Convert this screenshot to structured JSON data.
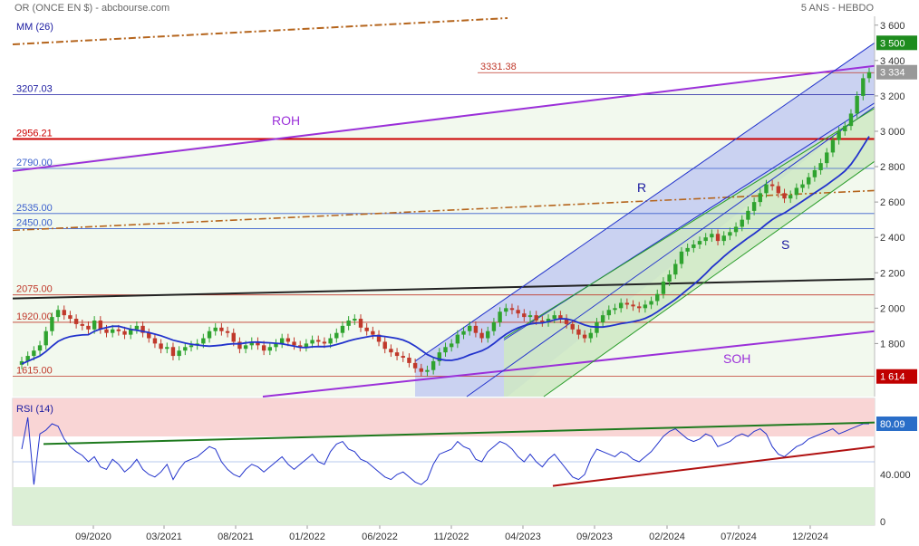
{
  "header": {
    "title": "OR (ONCE EN $) - abcbourse.com",
    "period": "5 ANS - HEBDO"
  },
  "chart_data": {
    "type": "candlestick",
    "ma_label": "MM (26)",
    "ylim": [
      1500,
      3650
    ],
    "y_ticks": [
      "1 800",
      "2 000",
      "2 200",
      "2 400",
      "2 600",
      "2 800",
      "3 000",
      "3 200",
      "3 400",
      "3 600"
    ],
    "x_ticks": [
      "09/2020",
      "03/2021",
      "08/2021",
      "01/2022",
      "06/2022",
      "11/2022",
      "04/2023",
      "09/2023",
      "02/2024",
      "07/2024",
      "12/2024"
    ],
    "levels": [
      {
        "label": "3331.38",
        "value": 3331.38,
        "color": "#c0392b"
      },
      {
        "label": "3207.03",
        "value": 3207.03,
        "color": "#1a1aa0"
      },
      {
        "label": "2956.21",
        "value": 2956.21,
        "color": "#cc0000"
      },
      {
        "label": "2790.00",
        "value": 2790.0,
        "color": "#3a5fcd"
      },
      {
        "label": "2535.00",
        "value": 2535.0,
        "color": "#3a5fcd"
      },
      {
        "label": "2450.00",
        "value": 2450.0,
        "color": "#3a5fcd"
      },
      {
        "label": "2075.00",
        "value": 2075.0,
        "color": "#c0392b"
      },
      {
        "label": "1920.00",
        "value": 1920.0,
        "color": "#c0392b"
      },
      {
        "label": "1615.00",
        "value": 1615.0,
        "color": "#c0392b"
      }
    ],
    "right_badges": [
      {
        "label": "3 500",
        "value": 3500,
        "color": "#1e8c1e"
      },
      {
        "label": "3 334",
        "value": 3334,
        "color": "#999999"
      },
      {
        "label": "1 614",
        "value": 1614,
        "color": "#c00000"
      }
    ],
    "annotations": [
      "ROH",
      "R",
      "S",
      "SOH"
    ],
    "close_path": [
      [
        0,
        1700
      ],
      [
        1,
        1730
      ],
      [
        2,
        1760
      ],
      [
        3,
        1790
      ],
      [
        4,
        1870
      ],
      [
        5,
        1950
      ],
      [
        6,
        1990
      ],
      [
        7,
        1960
      ],
      [
        8,
        1940
      ],
      [
        9,
        1910
      ],
      [
        10,
        1900
      ],
      [
        11,
        1880
      ],
      [
        12,
        1930
      ],
      [
        13,
        1880
      ],
      [
        14,
        1860
      ],
      [
        15,
        1880
      ],
      [
        16,
        1870
      ],
      [
        17,
        1850
      ],
      [
        18,
        1880
      ],
      [
        19,
        1900
      ],
      [
        20,
        1860
      ],
      [
        21,
        1830
      ],
      [
        22,
        1800
      ],
      [
        23,
        1770
      ],
      [
        24,
        1780
      ],
      [
        25,
        1730
      ],
      [
        26,
        1760
      ],
      [
        27,
        1780
      ],
      [
        28,
        1790
      ],
      [
        29,
        1800
      ],
      [
        30,
        1830
      ],
      [
        31,
        1870
      ],
      [
        32,
        1890
      ],
      [
        33,
        1870
      ],
      [
        34,
        1860
      ],
      [
        35,
        1810
      ],
      [
        36,
        1770
      ],
      [
        37,
        1790
      ],
      [
        38,
        1810
      ],
      [
        39,
        1790
      ],
      [
        40,
        1760
      ],
      [
        41,
        1780
      ],
      [
        42,
        1800
      ],
      [
        43,
        1830
      ],
      [
        44,
        1810
      ],
      [
        45,
        1790
      ],
      [
        46,
        1780
      ],
      [
        47,
        1800
      ],
      [
        48,
        1820
      ],
      [
        49,
        1810
      ],
      [
        50,
        1800
      ],
      [
        51,
        1830
      ],
      [
        52,
        1860
      ],
      [
        53,
        1900
      ],
      [
        54,
        1930
      ],
      [
        55,
        1940
      ],
      [
        56,
        1890
      ],
      [
        57,
        1870
      ],
      [
        58,
        1850
      ],
      [
        59,
        1810
      ],
      [
        60,
        1770
      ],
      [
        61,
        1750
      ],
      [
        62,
        1730
      ],
      [
        63,
        1720
      ],
      [
        64,
        1690
      ],
      [
        65,
        1660
      ],
      [
        66,
        1640
      ],
      [
        67,
        1650
      ],
      [
        68,
        1700
      ],
      [
        69,
        1750
      ],
      [
        70,
        1780
      ],
      [
        71,
        1800
      ],
      [
        72,
        1850
      ],
      [
        73,
        1870
      ],
      [
        74,
        1900
      ],
      [
        75,
        1860
      ],
      [
        76,
        1830
      ],
      [
        77,
        1870
      ],
      [
        78,
        1920
      ],
      [
        79,
        1980
      ],
      [
        80,
        2000
      ],
      [
        81,
        1990
      ],
      [
        82,
        1970
      ],
      [
        83,
        1950
      ],
      [
        84,
        1960
      ],
      [
        85,
        1930
      ],
      [
        86,
        1920
      ],
      [
        87,
        1940
      ],
      [
        88,
        1960
      ],
      [
        89,
        1940
      ],
      [
        90,
        1910
      ],
      [
        91,
        1880
      ],
      [
        92,
        1850
      ],
      [
        93,
        1830
      ],
      [
        94,
        1860
      ],
      [
        95,
        1920
      ],
      [
        96,
        1960
      ],
      [
        97,
        1990
      ],
      [
        98,
        2000
      ],
      [
        99,
        2030
      ],
      [
        100,
        2020
      ],
      [
        101,
        2010
      ],
      [
        102,
        2000
      ],
      [
        103,
        2020
      ],
      [
        104,
        2040
      ],
      [
        105,
        2080
      ],
      [
        106,
        2150
      ],
      [
        107,
        2190
      ],
      [
        108,
        2250
      ],
      [
        109,
        2320
      ],
      [
        110,
        2340
      ],
      [
        111,
        2360
      ],
      [
        112,
        2380
      ],
      [
        113,
        2400
      ],
      [
        114,
        2420
      ],
      [
        115,
        2380
      ],
      [
        116,
        2410
      ],
      [
        117,
        2430
      ],
      [
        118,
        2460
      ],
      [
        119,
        2500
      ],
      [
        120,
        2550
      ],
      [
        121,
        2600
      ],
      [
        122,
        2650
      ],
      [
        123,
        2700
      ],
      [
        124,
        2690
      ],
      [
        125,
        2650
      ],
      [
        126,
        2620
      ],
      [
        127,
        2640
      ],
      [
        128,
        2680
      ],
      [
        129,
        2700
      ],
      [
        130,
        2740
      ],
      [
        131,
        2780
      ],
      [
        132,
        2820
      ],
      [
        133,
        2880
      ],
      [
        134,
        2950
      ],
      [
        135,
        3000
      ],
      [
        136,
        3030
      ],
      [
        137,
        3100
      ],
      [
        138,
        3200
      ],
      [
        139,
        3300
      ],
      [
        140,
        3334
      ]
    ],
    "rsi": {
      "label": "RSI (14)",
      "value_badge": "80.09",
      "ticks": [
        "40.000",
        "0"
      ],
      "overbought": 70,
      "oversold": 30,
      "series": [
        [
          0,
          60
        ],
        [
          1,
          85
        ],
        [
          2,
          32
        ],
        [
          3,
          72
        ],
        [
          4,
          75
        ],
        [
          5,
          80
        ],
        [
          6,
          78
        ],
        [
          7,
          68
        ],
        [
          8,
          62
        ],
        [
          9,
          58
        ],
        [
          10,
          55
        ],
        [
          11,
          50
        ],
        [
          12,
          54
        ],
        [
          13,
          46
        ],
        [
          14,
          44
        ],
        [
          15,
          52
        ],
        [
          16,
          48
        ],
        [
          17,
          42
        ],
        [
          18,
          46
        ],
        [
          19,
          52
        ],
        [
          20,
          44
        ],
        [
          21,
          40
        ],
        [
          22,
          38
        ],
        [
          23,
          42
        ],
        [
          24,
          48
        ],
        [
          25,
          36
        ],
        [
          26,
          44
        ],
        [
          27,
          50
        ],
        [
          28,
          52
        ],
        [
          29,
          54
        ],
        [
          30,
          58
        ],
        [
          31,
          62
        ],
        [
          32,
          60
        ],
        [
          33,
          50
        ],
        [
          34,
          44
        ],
        [
          35,
          40
        ],
        [
          36,
          38
        ],
        [
          37,
          44
        ],
        [
          38,
          48
        ],
        [
          39,
          46
        ],
        [
          40,
          42
        ],
        [
          41,
          46
        ],
        [
          42,
          50
        ],
        [
          43,
          54
        ],
        [
          44,
          48
        ],
        [
          45,
          44
        ],
        [
          46,
          48
        ],
        [
          47,
          52
        ],
        [
          48,
          56
        ],
        [
          49,
          50
        ],
        [
          50,
          48
        ],
        [
          51,
          58
        ],
        [
          52,
          64
        ],
        [
          53,
          66
        ],
        [
          54,
          60
        ],
        [
          55,
          58
        ],
        [
          56,
          52
        ],
        [
          57,
          50
        ],
        [
          58,
          46
        ],
        [
          59,
          42
        ],
        [
          60,
          38
        ],
        [
          61,
          36
        ],
        [
          62,
          40
        ],
        [
          63,
          42
        ],
        [
          64,
          38
        ],
        [
          65,
          34
        ],
        [
          66,
          32
        ],
        [
          67,
          36
        ],
        [
          68,
          48
        ],
        [
          69,
          56
        ],
        [
          70,
          58
        ],
        [
          71,
          60
        ],
        [
          72,
          66
        ],
        [
          73,
          62
        ],
        [
          74,
          60
        ],
        [
          75,
          52
        ],
        [
          76,
          50
        ],
        [
          77,
          58
        ],
        [
          78,
          62
        ],
        [
          79,
          66
        ],
        [
          80,
          64
        ],
        [
          81,
          60
        ],
        [
          82,
          54
        ],
        [
          83,
          50
        ],
        [
          84,
          56
        ],
        [
          85,
          50
        ],
        [
          86,
          46
        ],
        [
          87,
          52
        ],
        [
          88,
          56
        ],
        [
          89,
          50
        ],
        [
          90,
          44
        ],
        [
          91,
          38
        ],
        [
          92,
          36
        ],
        [
          93,
          40
        ],
        [
          94,
          52
        ],
        [
          95,
          60
        ],
        [
          96,
          58
        ],
        [
          97,
          56
        ],
        [
          98,
          54
        ],
        [
          99,
          58
        ],
        [
          100,
          56
        ],
        [
          101,
          52
        ],
        [
          102,
          50
        ],
        [
          103,
          54
        ],
        [
          104,
          58
        ],
        [
          105,
          64
        ],
        [
          106,
          70
        ],
        [
          107,
          74
        ],
        [
          108,
          76
        ],
        [
          109,
          72
        ],
        [
          110,
          68
        ],
        [
          111,
          66
        ],
        [
          112,
          68
        ],
        [
          113,
          72
        ],
        [
          114,
          70
        ],
        [
          115,
          62
        ],
        [
          116,
          64
        ],
        [
          117,
          66
        ],
        [
          118,
          70
        ],
        [
          119,
          72
        ],
        [
          120,
          70
        ],
        [
          121,
          74
        ],
        [
          122,
          76
        ],
        [
          123,
          72
        ],
        [
          124,
          62
        ],
        [
          125,
          56
        ],
        [
          126,
          54
        ],
        [
          127,
          58
        ],
        [
          128,
          62
        ],
        [
          129,
          64
        ],
        [
          130,
          68
        ],
        [
          131,
          70
        ],
        [
          132,
          72
        ],
        [
          133,
          74
        ],
        [
          134,
          76
        ],
        [
          135,
          72
        ],
        [
          136,
          74
        ],
        [
          137,
          76
        ],
        [
          138,
          78
        ],
        [
          139,
          80
        ],
        [
          140,
          80
        ]
      ]
    }
  }
}
